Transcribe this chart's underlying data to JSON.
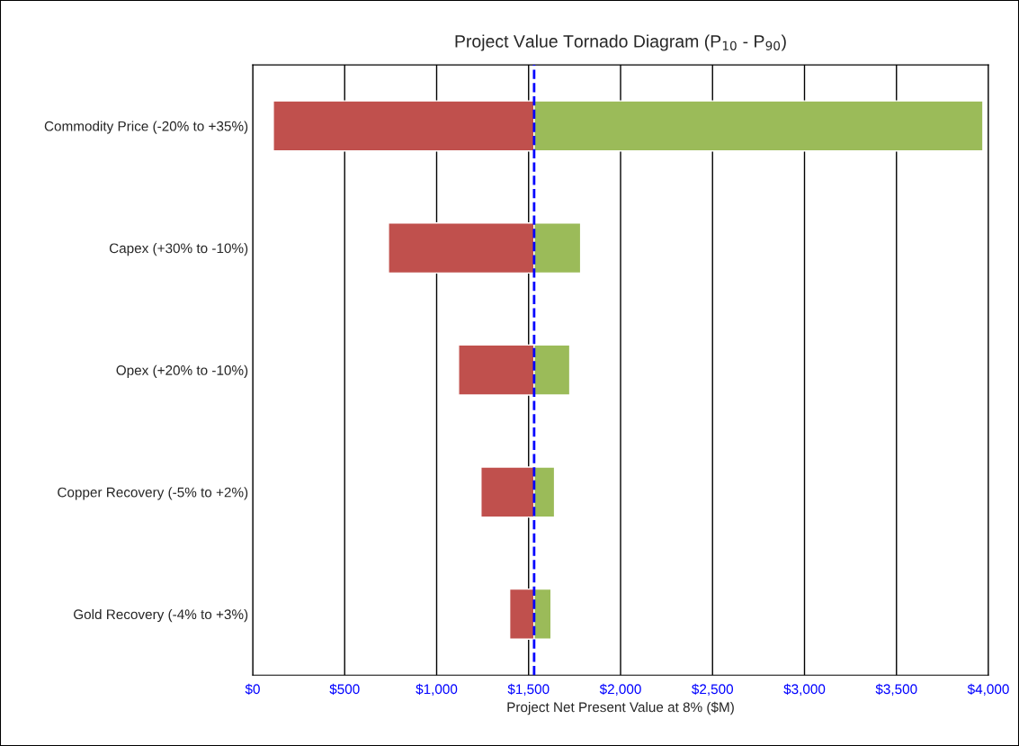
{
  "chart_data": {
    "type": "bar",
    "orientation": "horizontal",
    "stacked": false,
    "title": "Project Value Tornado Diagram (P$_{10}$ - P$_{90}$)",
    "xlabel": "Project Net Present Value at 8% ($M)",
    "categories": [
      "Commodity Price (-20% to +35%)",
      "Capex (+30% to -10%)",
      "Opex (+20% to -10%)",
      "Copper Recovery (-5% to +2%)",
      "Gold Recovery (-4% to +3%)"
    ],
    "series": [
      {
        "color": "#c0504d",
        "base": [
          112,
          738,
          1119,
          1241,
          1397
        ],
        "values": [
          1418,
          792,
          411,
          289,
          133
        ]
      },
      {
        "color": "#9bbb59",
        "base": [
          1530,
          1530,
          1530,
          1530,
          1530
        ],
        "values": [
          2440,
          253,
          194,
          111,
          92
        ]
      }
    ],
    "xlim": [
      0,
      4000
    ],
    "xticks": [
      {
        "value": 0,
        "label": "$0"
      },
      {
        "value": 500,
        "label": "$500"
      },
      {
        "value": 1000,
        "label": "$1,000"
      },
      {
        "value": 1500,
        "label": "$1,500"
      },
      {
        "value": 2000,
        "label": "$2,000"
      },
      {
        "value": 2500,
        "label": "$2,500"
      },
      {
        "value": 3000,
        "label": "$3,000"
      },
      {
        "value": 3500,
        "label": "$3,500"
      },
      {
        "value": 4000,
        "label": "$4,000"
      }
    ],
    "grid": "x",
    "ref_lines": [
      {
        "axis": "x",
        "value": 1530,
        "color": "#0000ff",
        "line_style": "dashed"
      }
    ],
    "legend": false
  }
}
